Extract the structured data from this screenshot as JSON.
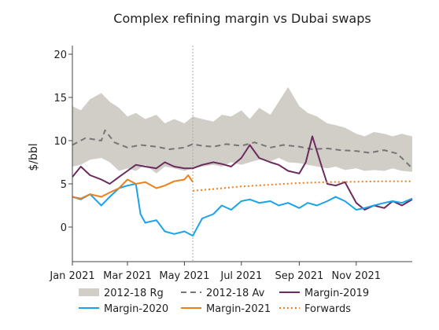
{
  "chart_data": {
    "type": "line",
    "title": "Complex refining margin vs Dubai swaps",
    "ylabel": "$/bbl",
    "xlabel": "",
    "ylim": [
      -4,
      21
    ],
    "yticks": [
      0,
      5,
      10,
      15,
      20
    ],
    "x_domain": [
      "2021-01-01",
      "2021-12-31"
    ],
    "xticks": [
      {
        "date": "2021-01-01",
        "label": "Jan 2021"
      },
      {
        "date": "2021-03-01",
        "label": "Mar 2021"
      },
      {
        "date": "2021-05-01",
        "label": "May 2021"
      },
      {
        "date": "2021-07-01",
        "label": "Jul 2021"
      },
      {
        "date": "2021-09-01",
        "label": "Sep 2021"
      },
      {
        "date": "2021-11-01",
        "label": "Nov 2021"
      }
    ],
    "vertical_marker": "2021-05-10",
    "grid": false,
    "legend_position": "bottom",
    "band": {
      "name": "2012-18 Rg",
      "color": "#d0cec7",
      "x": [
        "2021-01-01",
        "2021-01-10",
        "2021-01-20",
        "2021-02-01",
        "2021-02-10",
        "2021-02-20",
        "2021-03-01",
        "2021-03-10",
        "2021-03-20",
        "2021-04-01",
        "2021-04-10",
        "2021-04-20",
        "2021-05-01",
        "2021-05-10",
        "2021-05-20",
        "2021-06-01",
        "2021-06-10",
        "2021-06-20",
        "2021-07-01",
        "2021-07-10",
        "2021-07-20",
        "2021-08-01",
        "2021-08-10",
        "2021-08-20",
        "2021-09-01",
        "2021-09-10",
        "2021-09-20",
        "2021-10-01",
        "2021-10-10",
        "2021-10-20",
        "2021-11-01",
        "2021-11-10",
        "2021-11-20",
        "2021-12-01",
        "2021-12-10",
        "2021-12-20",
        "2021-12-31"
      ],
      "upper": [
        14.0,
        13.5,
        14.8,
        15.5,
        14.5,
        13.8,
        12.8,
        13.2,
        12.5,
        13.0,
        12.0,
        12.5,
        12.0,
        12.8,
        12.5,
        12.2,
        13.0,
        12.8,
        13.5,
        12.5,
        13.8,
        13.0,
        14.5,
        16.2,
        14.0,
        13.2,
        12.8,
        12.0,
        11.8,
        11.5,
        10.8,
        10.5,
        11.0,
        10.8,
        10.5,
        10.8,
        10.5
      ],
      "lower": [
        7.0,
        7.2,
        7.8,
        8.0,
        7.5,
        6.5,
        6.8,
        6.5,
        7.2,
        6.2,
        7.0,
        6.8,
        6.5,
        6.8,
        7.0,
        7.2,
        7.0,
        7.5,
        7.2,
        7.5,
        7.8,
        7.6,
        8.0,
        7.5,
        7.4,
        7.2,
        7.0,
        6.8,
        7.0,
        6.6,
        6.8,
        6.5,
        6.6,
        6.5,
        6.8,
        6.5,
        6.4
      ]
    },
    "series": [
      {
        "name": "2012-18 Av",
        "color": "#767676",
        "style": "dashed",
        "x": [
          "2021-01-01",
          "2021-01-15",
          "2021-02-01",
          "2021-02-05",
          "2021-02-15",
          "2021-03-01",
          "2021-03-15",
          "2021-04-01",
          "2021-04-15",
          "2021-05-01",
          "2021-05-10",
          "2021-05-20",
          "2021-06-01",
          "2021-06-15",
          "2021-07-01",
          "2021-07-15",
          "2021-08-01",
          "2021-08-15",
          "2021-09-01",
          "2021-09-15",
          "2021-10-01",
          "2021-10-15",
          "2021-11-01",
          "2021-11-15",
          "2021-12-01",
          "2021-12-15",
          "2021-12-31"
        ],
        "y": [
          9.5,
          10.3,
          10.0,
          11.2,
          9.8,
          9.2,
          9.5,
          9.3,
          9.0,
          9.2,
          9.6,
          9.4,
          9.3,
          9.6,
          9.4,
          9.8,
          9.2,
          9.5,
          9.3,
          9.0,
          9.1,
          8.9,
          8.8,
          8.6,
          8.9,
          8.5,
          6.8
        ]
      },
      {
        "name": "Margin-2019",
        "color": "#6b2a5c",
        "style": "solid",
        "x": [
          "2021-01-01",
          "2021-01-10",
          "2021-01-20",
          "2021-02-01",
          "2021-02-10",
          "2021-02-20",
          "2021-03-01",
          "2021-03-10",
          "2021-03-20",
          "2021-04-01",
          "2021-04-10",
          "2021-04-20",
          "2021-05-01",
          "2021-05-10",
          "2021-05-20",
          "2021-06-01",
          "2021-06-10",
          "2021-06-20",
          "2021-07-01",
          "2021-07-10",
          "2021-07-20",
          "2021-08-01",
          "2021-08-10",
          "2021-08-20",
          "2021-09-01",
          "2021-09-08",
          "2021-09-15",
          "2021-09-25",
          "2021-10-01",
          "2021-10-10",
          "2021-10-20",
          "2021-11-01",
          "2021-11-10",
          "2021-11-20",
          "2021-12-01",
          "2021-12-10",
          "2021-12-20",
          "2021-12-31"
        ],
        "y": [
          5.8,
          7.0,
          6.0,
          5.5,
          5.0,
          5.8,
          6.5,
          7.2,
          7.0,
          6.8,
          7.5,
          7.0,
          6.8,
          6.8,
          7.2,
          7.5,
          7.3,
          7.0,
          8.0,
          9.5,
          8.0,
          7.5,
          7.2,
          6.5,
          6.2,
          7.5,
          10.5,
          7.0,
          5.0,
          4.8,
          5.2,
          2.8,
          2.0,
          2.5,
          2.2,
          3.0,
          2.5,
          3.2
        ]
      },
      {
        "name": "Margin-2020",
        "color": "#1aa3e8",
        "style": "solid",
        "x": [
          "2021-01-01",
          "2021-01-10",
          "2021-01-20",
          "2021-02-01",
          "2021-02-10",
          "2021-02-20",
          "2021-03-01",
          "2021-03-10",
          "2021-03-15",
          "2021-03-20",
          "2021-04-01",
          "2021-04-10",
          "2021-04-20",
          "2021-05-01",
          "2021-05-10",
          "2021-05-20",
          "2021-06-01",
          "2021-06-10",
          "2021-06-20",
          "2021-07-01",
          "2021-07-10",
          "2021-07-20",
          "2021-08-01",
          "2021-08-10",
          "2021-08-20",
          "2021-09-01",
          "2021-09-10",
          "2021-09-20",
          "2021-10-01",
          "2021-10-10",
          "2021-10-20",
          "2021-11-01",
          "2021-11-10",
          "2021-11-20",
          "2021-12-01",
          "2021-12-10",
          "2021-12-20",
          "2021-12-31"
        ],
        "y": [
          3.5,
          3.2,
          3.8,
          2.5,
          3.5,
          4.5,
          4.8,
          5.0,
          1.5,
          0.5,
          0.8,
          -0.5,
          -0.8,
          -0.5,
          -1.0,
          1.0,
          1.5,
          2.5,
          2.0,
          3.0,
          3.2,
          2.8,
          3.0,
          2.5,
          2.8,
          2.2,
          2.8,
          2.5,
          3.0,
          3.5,
          3.0,
          2.0,
          2.2,
          2.5,
          2.8,
          3.0,
          2.8,
          3.3
        ]
      },
      {
        "name": "Margin-2021",
        "color": "#ef7f1a",
        "style": "solid",
        "x": [
          "2021-01-01",
          "2021-01-10",
          "2021-01-20",
          "2021-02-01",
          "2021-02-10",
          "2021-02-20",
          "2021-03-01",
          "2021-03-10",
          "2021-03-20",
          "2021-04-01",
          "2021-04-10",
          "2021-04-20",
          "2021-05-01",
          "2021-05-05",
          "2021-05-10"
        ],
        "y": [
          3.5,
          3.3,
          3.8,
          3.5,
          4.0,
          4.5,
          5.5,
          5.0,
          5.2,
          4.5,
          4.8,
          5.3,
          5.5,
          6.0,
          5.2
        ]
      },
      {
        "name": "Forwards",
        "color": "#ef7f1a",
        "style": "dotted",
        "x": [
          "2021-05-10",
          "2021-06-01",
          "2021-07-01",
          "2021-08-01",
          "2021-09-01",
          "2021-10-01",
          "2021-11-01",
          "2021-12-01",
          "2021-12-31"
        ],
        "y": [
          4.2,
          4.4,
          4.7,
          4.9,
          5.1,
          5.2,
          5.25,
          5.3,
          5.3
        ]
      }
    ]
  }
}
